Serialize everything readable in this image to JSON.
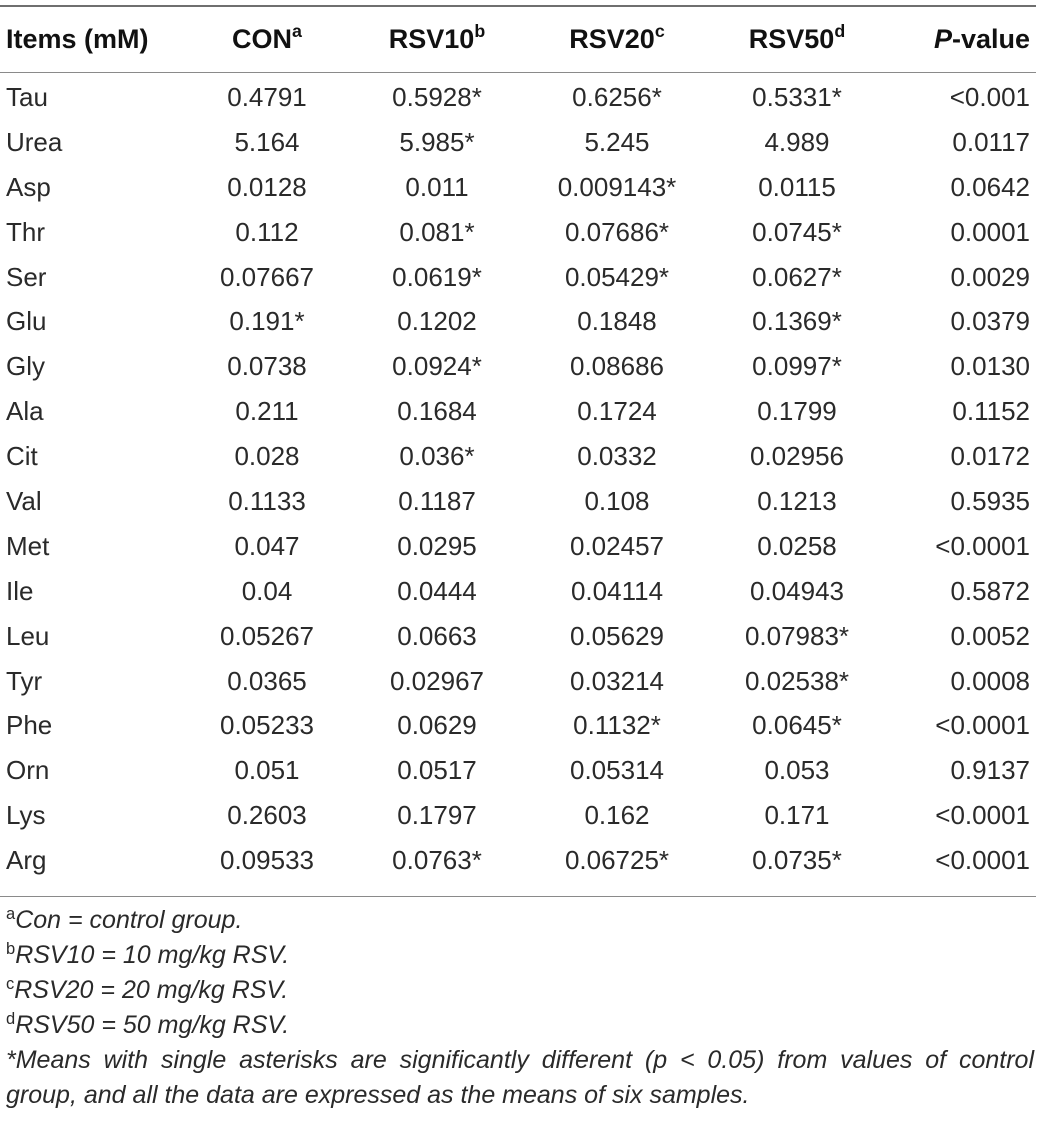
{
  "table": {
    "headers": [
      {
        "text": "Items (mM)",
        "sup": ""
      },
      {
        "text": "CON",
        "sup": "a"
      },
      {
        "text": "RSV10",
        "sup": "b"
      },
      {
        "text": "RSV20",
        "sup": "c"
      },
      {
        "text": "RSV50",
        "sup": "d"
      },
      {
        "text": "-value",
        "prefix_italic": "P",
        "sup": ""
      }
    ],
    "rows": [
      [
        "Tau",
        "0.4791",
        "0.5928*",
        "0.6256*",
        "0.5331*",
        "<0.001"
      ],
      [
        "Urea",
        "5.164",
        "5.985*",
        "5.245",
        "4.989",
        "0.0117"
      ],
      [
        "Asp",
        "0.0128",
        "0.011",
        "0.009143*",
        "0.0115",
        "0.0642"
      ],
      [
        "Thr",
        "0.112",
        "0.081*",
        "0.07686*",
        "0.0745*",
        "0.0001"
      ],
      [
        "Ser",
        "0.07667",
        "0.0619*",
        "0.05429*",
        "0.0627*",
        "0.0029"
      ],
      [
        "Glu",
        "0.191*",
        "0.1202",
        "0.1848",
        "0.1369*",
        "0.0379"
      ],
      [
        "Gly",
        "0.0738",
        "0.0924*",
        "0.08686",
        "0.0997*",
        "0.0130"
      ],
      [
        "Ala",
        "0.211",
        "0.1684",
        "0.1724",
        "0.1799",
        "0.1152"
      ],
      [
        "Cit",
        "0.028",
        "0.036*",
        "0.0332",
        "0.02956",
        "0.0172"
      ],
      [
        "Val",
        "0.1133",
        "0.1187",
        "0.108",
        "0.1213",
        "0.5935"
      ],
      [
        "Met",
        "0.047",
        "0.0295",
        "0.02457",
        "0.0258",
        "<0.0001"
      ],
      [
        "Ile",
        "0.04",
        "0.0444",
        "0.04114",
        "0.04943",
        "0.5872"
      ],
      [
        "Leu",
        "0.05267",
        "0.0663",
        "0.05629",
        "0.07983*",
        "0.0052"
      ],
      [
        "Tyr",
        "0.0365",
        "0.02967",
        "0.03214",
        "0.02538*",
        "0.0008"
      ],
      [
        "Phe",
        "0.05233",
        "0.0629",
        "0.1132*",
        "0.0645*",
        "<0.0001"
      ],
      [
        "Orn",
        "0.051",
        "0.0517",
        "0.05314",
        "0.053",
        "0.9137"
      ],
      [
        "Lys",
        "0.2603",
        "0.1797",
        "0.162",
        "0.171",
        "<0.0001"
      ],
      [
        "Arg",
        "0.09533",
        "0.0763*",
        "0.06725*",
        "0.0735*",
        "<0.0001"
      ]
    ]
  },
  "footnotes": [
    {
      "sup": "a",
      "text": "Con = control group."
    },
    {
      "sup": "b",
      "text": "RSV10 = 10 mg/kg RSV."
    },
    {
      "sup": "c",
      "text": "RSV20 = 20 mg/kg RSV."
    },
    {
      "sup": "d",
      "text": "RSV50 = 50 mg/kg RSV."
    }
  ],
  "asterisk_note": "*Means with single asterisks are significantly different (p < 0.05) from values of control group, and all the data are expressed as the means of six samples."
}
